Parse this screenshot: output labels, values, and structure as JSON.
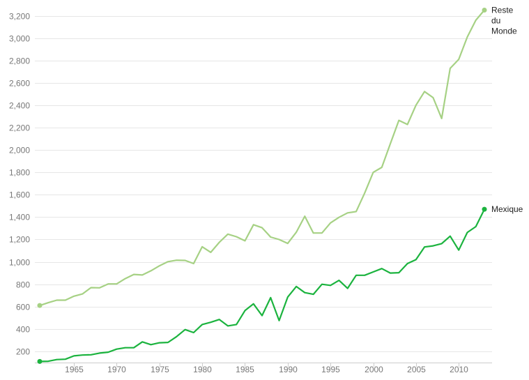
{
  "chart_data": {
    "type": "line",
    "title": "",
    "xlabel": "",
    "ylabel": "",
    "xlim": [
      1961,
      2013
    ],
    "ylim": [
      100,
      3300
    ],
    "grid": true,
    "y_ticks": [
      200,
      400,
      600,
      800,
      1000,
      1200,
      1400,
      1600,
      1800,
      2000,
      2200,
      2400,
      2600,
      2800,
      3000,
      3200
    ],
    "y_tick_labels": [
      "200",
      "400",
      "600",
      "800",
      "1,000",
      "1,200",
      "1,400",
      "1,600",
      "1,800",
      "2,000",
      "2,200",
      "2,400",
      "2,600",
      "2,800",
      "3,000",
      "3,200"
    ],
    "x_ticks": [
      1965,
      1970,
      1975,
      1980,
      1985,
      1990,
      1995,
      2000,
      2005,
      2010
    ],
    "x_tick_labels": [
      "1965",
      "1970",
      "1975",
      "1980",
      "1985",
      "1990",
      "1995",
      "2000",
      "2005",
      "2010"
    ],
    "x": [
      1961,
      1962,
      1963,
      1964,
      1965,
      1966,
      1967,
      1968,
      1969,
      1970,
      1971,
      1972,
      1973,
      1974,
      1975,
      1976,
      1977,
      1978,
      1979,
      1980,
      1981,
      1982,
      1983,
      1984,
      1985,
      1986,
      1987,
      1988,
      1989,
      1990,
      1991,
      1992,
      1993,
      1994,
      1995,
      1996,
      1997,
      1998,
      1999,
      2000,
      2001,
      2002,
      2003,
      2004,
      2005,
      2006,
      2007,
      2008,
      2009,
      2010,
      2011,
      2012,
      2013
    ],
    "series": [
      {
        "name": "Reste du Monde",
        "label_lines": [
          "Reste",
          "du",
          "Monde"
        ],
        "color": "#a6d184",
        "values": [
          610,
          635,
          658,
          658,
          693,
          713,
          770,
          768,
          803,
          803,
          850,
          888,
          883,
          920,
          965,
          1002,
          1015,
          1013,
          985,
          1135,
          1085,
          1175,
          1248,
          1225,
          1188,
          1332,
          1305,
          1222,
          1200,
          1165,
          1265,
          1408,
          1258,
          1258,
          1348,
          1398,
          1438,
          1450,
          1615,
          1800,
          1845,
          2055,
          2265,
          2228,
          2400,
          2522,
          2468,
          2282,
          2730,
          2810,
          3010,
          3160,
          3250
        ]
      },
      {
        "name": "Mexique",
        "label_lines": [
          "Mexique"
        ],
        "color": "#1bb33e",
        "values": [
          110,
          112,
          127,
          130,
          160,
          167,
          170,
          185,
          193,
          220,
          233,
          233,
          285,
          260,
          277,
          280,
          332,
          395,
          368,
          440,
          460,
          485,
          428,
          440,
          565,
          625,
          520,
          680,
          475,
          685,
          780,
          725,
          710,
          800,
          790,
          835,
          763,
          880,
          880,
          910,
          940,
          900,
          903,
          985,
          1020,
          1133,
          1143,
          1163,
          1230,
          1105,
          1263,
          1315,
          1470
        ]
      }
    ]
  }
}
